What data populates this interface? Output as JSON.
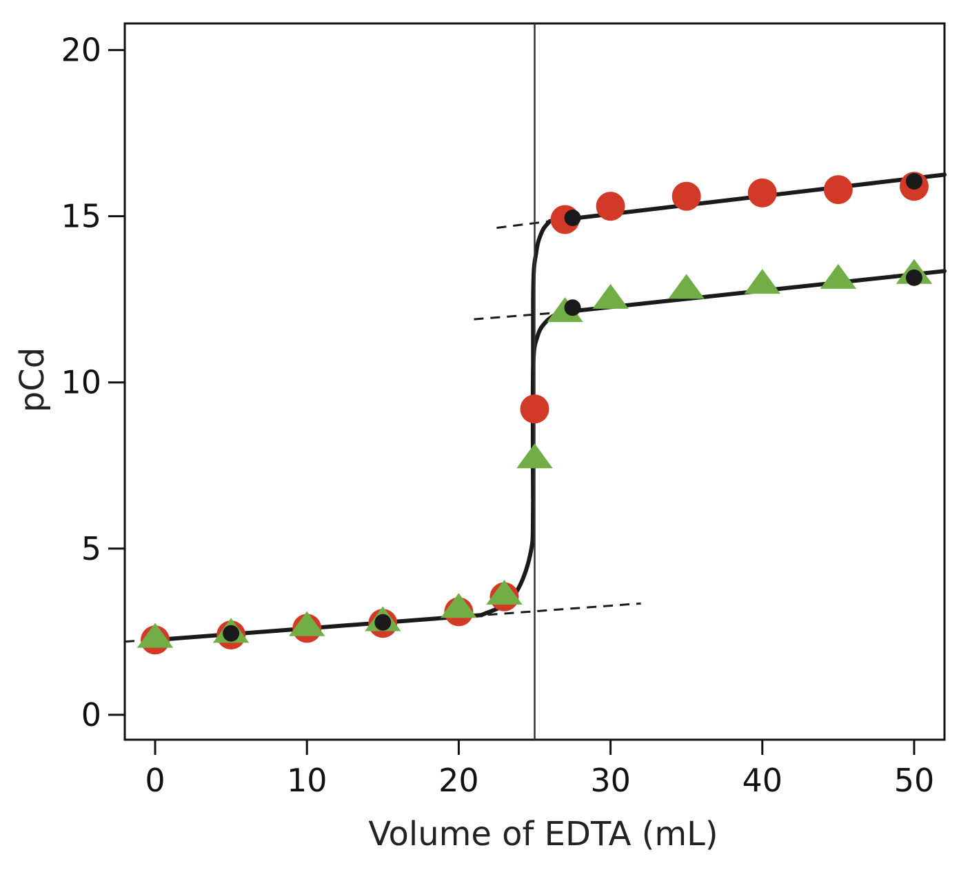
{
  "chart_data": {
    "type": "scatter",
    "title": "",
    "xlabel": "Volume of EDTA (mL)",
    "ylabel": "pCd",
    "xlim": [
      -2,
      52
    ],
    "ylim": [
      -0.75,
      20.8
    ],
    "x_ticks": [
      0,
      10,
      20,
      30,
      40,
      50
    ],
    "y_ticks": [
      0,
      5,
      10,
      15,
      20
    ],
    "x_tick_labels": [
      "0",
      "10",
      "20",
      "30",
      "40",
      "50"
    ],
    "y_tick_labels": [
      "0",
      "5",
      "10",
      "15",
      "20"
    ],
    "grid": false,
    "legend": "none",
    "equivalence_volume": 25,
    "series": [
      {
        "marker": "circle",
        "color": "#d23a27",
        "points": [
          [
            0,
            2.25
          ],
          [
            5,
            2.4
          ],
          [
            10,
            2.6
          ],
          [
            15,
            2.75
          ],
          [
            20,
            3.1
          ],
          [
            23,
            3.55
          ],
          [
            25,
            9.2
          ],
          [
            27,
            14.9
          ],
          [
            30,
            15.3
          ],
          [
            35,
            15.6
          ],
          [
            40,
            15.7
          ],
          [
            45,
            15.8
          ],
          [
            50,
            15.9
          ]
        ]
      },
      {
        "marker": "triangle",
        "color": "#72ad46",
        "points": [
          [
            0,
            2.3
          ],
          [
            5,
            2.45
          ],
          [
            10,
            2.65
          ],
          [
            15,
            2.8
          ],
          [
            20,
            3.2
          ],
          [
            23,
            3.6
          ],
          [
            25,
            7.7
          ],
          [
            27,
            12.1
          ],
          [
            30,
            12.5
          ],
          [
            35,
            12.8
          ],
          [
            40,
            12.95
          ],
          [
            45,
            13.1
          ],
          [
            50,
            13.25
          ]
        ]
      },
      {
        "marker": "dot",
        "color": "#1a1a1a",
        "points": [
          [
            5,
            2.45
          ],
          [
            15,
            2.78
          ],
          [
            27.5,
            14.95
          ],
          [
            27.5,
            12.25
          ],
          [
            50,
            16.05
          ],
          [
            50,
            13.15
          ]
        ]
      }
    ],
    "sketch_lines": [
      {
        "style": "solid",
        "points": [
          [
            0,
            2.25
          ],
          [
            21.5,
            3.0
          ]
        ]
      },
      {
        "style": "dashed",
        "points": [
          [
            -2,
            2.2
          ],
          [
            32,
            3.35
          ]
        ]
      },
      {
        "style": "solid",
        "points": [
          [
            26,
            14.85
          ],
          [
            52,
            16.25
          ]
        ]
      },
      {
        "style": "dashed",
        "points": [
          [
            22.5,
            14.65
          ],
          [
            26,
            14.85
          ]
        ]
      },
      {
        "style": "solid",
        "points": [
          [
            26.6,
            12.1
          ],
          [
            52,
            13.35
          ]
        ]
      },
      {
        "style": "dashed",
        "points": [
          [
            21,
            11.9
          ],
          [
            26.6,
            12.1
          ]
        ]
      }
    ],
    "sketch_curves": [
      {
        "style": "solid",
        "points": [
          [
            21.5,
            3.0
          ],
          [
            23.5,
            3.5
          ],
          [
            24.7,
            4.8
          ],
          [
            24.9,
            6.5
          ],
          [
            24.9,
            12.5
          ],
          [
            25.1,
            13.9
          ],
          [
            25.5,
            14.55
          ],
          [
            26,
            14.85
          ]
        ]
      },
      {
        "style": "solid",
        "points": [
          [
            24.9,
            6.5
          ],
          [
            24.9,
            10.4
          ],
          [
            25.2,
            11.4
          ],
          [
            25.8,
            11.85
          ],
          [
            26.6,
            12.1
          ]
        ]
      }
    ]
  }
}
